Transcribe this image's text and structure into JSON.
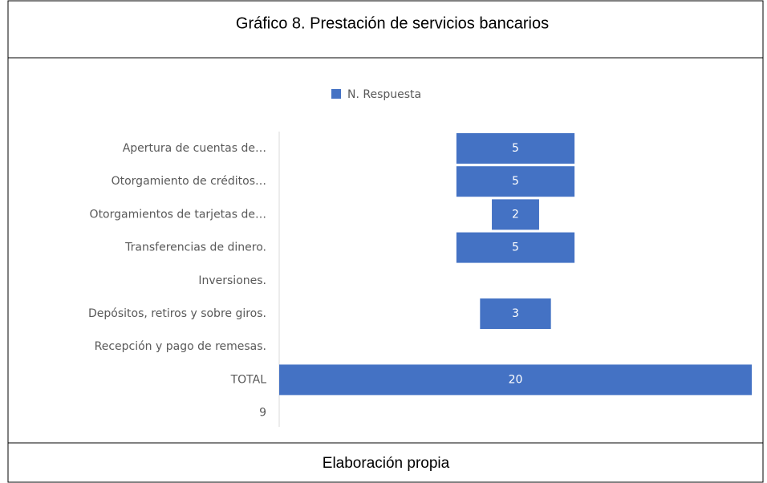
{
  "chart_data": {
    "type": "funnel_bar",
    "title": "Gráfico 8. Prestación de servicios bancarios",
    "footer": "Elaboración propia",
    "categories": [
      "Apertura de cuentas de…",
      "Otorgamiento de créditos…",
      "Otorgamientos de tarjetas de…",
      "Transferencias de dinero.",
      "Inversiones.",
      "Depósitos, retiros y sobre giros.",
      "Recepción y pago de remesas.",
      "TOTAL",
      "9"
    ],
    "series": [
      {
        "name": "N. Respuesta",
        "color": "#4472c4",
        "values": [
          5,
          5,
          2,
          5,
          null,
          3,
          null,
          20,
          null
        ]
      }
    ],
    "legend": "top"
  }
}
